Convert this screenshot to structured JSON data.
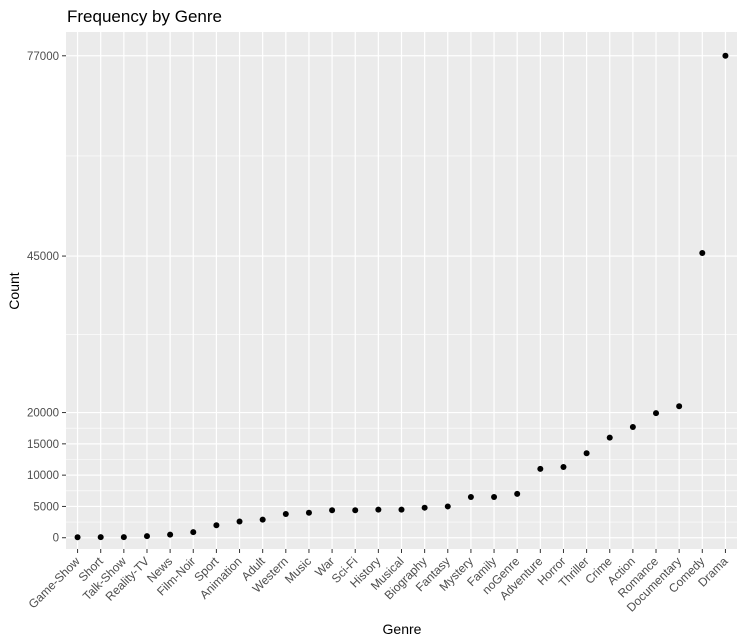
{
  "chart_data": {
    "type": "scatter",
    "title": "Frequency by Genre",
    "xlabel": "Genre",
    "ylabel": "Count",
    "categories": [
      "Game-Show",
      "Short",
      "Talk-Show",
      "Reality-TV",
      "News",
      "Film-Noir",
      "Sport",
      "Animation",
      "Adult",
      "Western",
      "Music",
      "War",
      "Sci-Fi",
      "History",
      "Musical",
      "Biography",
      "Fantasy",
      "Mystery",
      "Family",
      "noGenre",
      "Adventure",
      "Horror",
      "Thriller",
      "Crime",
      "Action",
      "Romance",
      "Documentary",
      "Comedy",
      "Drama"
    ],
    "values": [
      80,
      90,
      100,
      250,
      500,
      900,
      2000,
      2600,
      2900,
      3800,
      4000,
      4400,
      4400,
      4500,
      4500,
      4800,
      5000,
      6500,
      6500,
      7000,
      11000,
      11300,
      13500,
      16000,
      17700,
      19900,
      21000,
      45500,
      77000
    ],
    "y_ticks": [
      0,
      5000,
      10000,
      15000,
      20000,
      45000,
      77000
    ],
    "ylim": [
      -1800,
      80800
    ],
    "grid": true,
    "point_color": "#000000",
    "panel_color": "#ebebeb",
    "grid_color": "#ffffff"
  }
}
